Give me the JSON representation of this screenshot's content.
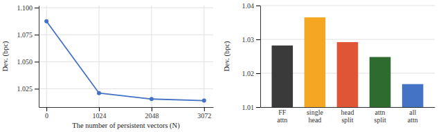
{
  "chart_data": [
    {
      "type": "line",
      "x": [
        0,
        1024,
        2048,
        3072
      ],
      "values": [
        1.0875,
        1.021,
        1.0155,
        1.014
      ],
      "color": "#4472c4",
      "marker": "circle",
      "xlabel": "The number of persistent vectors (N)",
      "ylabel": "Dev. (bpc)",
      "xlim": [
        -150,
        3250
      ],
      "ylim": [
        1.008,
        1.102
      ],
      "xticks": [
        0,
        1024,
        2048,
        3072
      ],
      "yticks": [
        1.025,
        {
          "value": 1.05,
          "label": "1.050"
        },
        1.075,
        {
          "value": 1.1,
          "label": "1.100"
        }
      ],
      "grid": true
    },
    {
      "type": "bar",
      "categories": [
        "FF\nattn",
        "single\nhead",
        "head\nsplit",
        "attn\nsplit",
        "all\nattn"
      ],
      "values": [
        1.0282,
        1.0365,
        1.0292,
        1.0248,
        1.0168
      ],
      "colors": [
        "#3a3a3a",
        "#f5a623",
        "#e05535",
        "#2e6b2e",
        "#4472c4"
      ],
      "ylabel": "Dev. (bpc)",
      "ylim": [
        1.01,
        1.04
      ],
      "yticks": [
        1.01,
        1.02,
        1.03,
        1.04
      ],
      "grid": "y"
    }
  ]
}
